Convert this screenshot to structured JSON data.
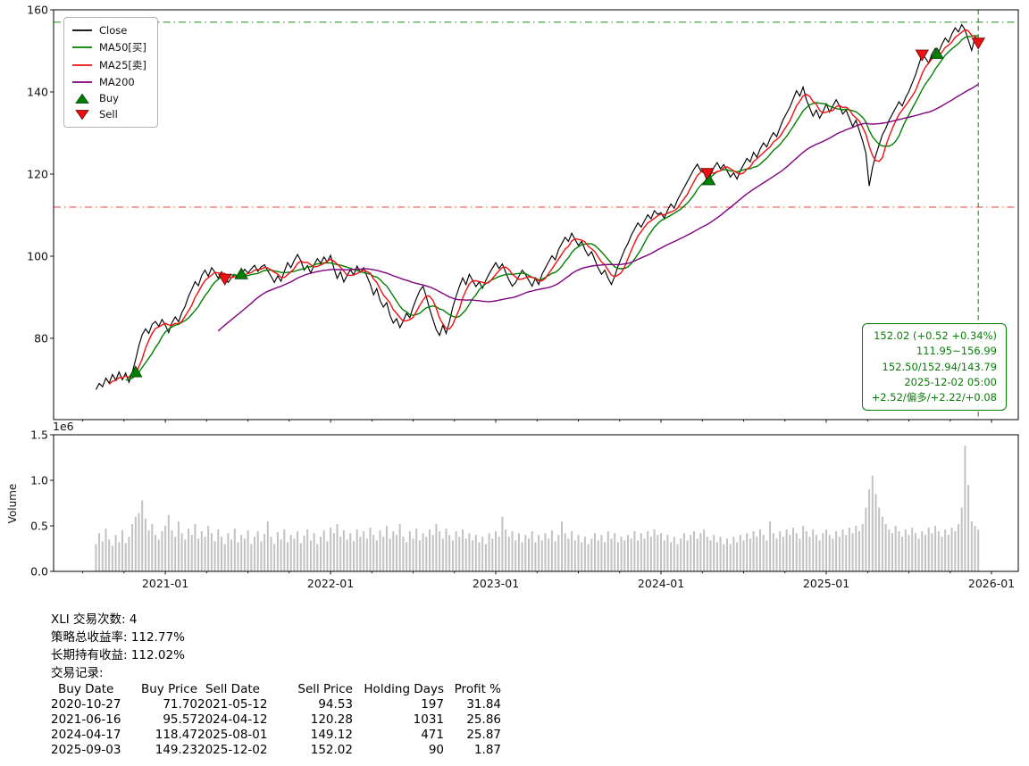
{
  "legend": {
    "items": [
      {
        "label": "Close",
        "type": "line",
        "color": "#000000"
      },
      {
        "label": "MA50[买]",
        "type": "line",
        "color": "#008000"
      },
      {
        "label": "MA25[卖]",
        "type": "line",
        "color": "#ee1111"
      },
      {
        "label": "MA200",
        "type": "line",
        "color": "#800080"
      },
      {
        "label": "Buy",
        "type": "triangle-up",
        "color": "#008000"
      },
      {
        "label": "Sell",
        "type": "triangle-down",
        "color": "#ee1111"
      }
    ]
  },
  "annotation": {
    "color": "#008000",
    "lines": [
      "152.02 (+0.52 +0.34%)",
      "111.95~156.99",
      "152.50/152.94/143.79",
      "2025-12-02 05:00",
      "+2.52/偏多/+2.22/+0.08"
    ]
  },
  "stats": {
    "trade_count_line": "XLI 交易次数: 4",
    "strategy_return_line": "策略总收益率: 112.77%",
    "hold_return_line": "长期持有收益: 112.02%",
    "records_label": "交易记录:",
    "trades": {
      "header": [
        "Buy Date",
        "Buy Price",
        "Sell Date",
        "Sell Price",
        "Holding Days",
        "Profit %"
      ],
      "rows": [
        [
          "2020-10-27",
          "71.70",
          "2021-05-12",
          "94.53",
          "197",
          "31.84"
        ],
        [
          "2021-06-16",
          "95.57",
          "2024-04-12",
          "120.28",
          "1031",
          "25.86"
        ],
        [
          "2024-04-17",
          "118.47",
          "2025-08-01",
          "149.12",
          "471",
          "25.87"
        ],
        [
          "2025-09-03",
          "149.23",
          "2025-12-02",
          "152.02",
          "90",
          "1.87"
        ]
      ]
    }
  },
  "chart_data": [
    {
      "type": "line",
      "name": "price-panel",
      "x_start": 2020.58,
      "x_step": 0.02,
      "xlim": [
        2020.324,
        2026.162
      ],
      "ylim": [
        60.2,
        160
      ],
      "yticks": [
        80,
        100,
        120,
        140,
        160
      ],
      "xticks": [
        {
          "v": 2021.0,
          "label": "2021-01"
        },
        {
          "v": 2022.0,
          "label": "2022-01"
        },
        {
          "v": 2023.0,
          "label": "2023-01"
        },
        {
          "v": 2024.0,
          "label": "2024-01"
        },
        {
          "v": 2025.0,
          "label": "2025-01"
        },
        {
          "v": 2026.0,
          "label": "2026-01"
        }
      ],
      "series": [
        {
          "name": "Close",
          "color": "#000000",
          "values": [
            67.5,
            69.0,
            68.2,
            70.3,
            69.1,
            71.2,
            69.8,
            71.8,
            69.9,
            71.5,
            69.3,
            71.7,
            74.8,
            78.2,
            80.9,
            82.3,
            81.2,
            83.4,
            84.1,
            82.9,
            84.6,
            83.2,
            81.4,
            83.8,
            85.2,
            84.0,
            86.3,
            87.8,
            90.2,
            91.9,
            93.8,
            92.8,
            95.3,
            96.6,
            95.1,
            97.2,
            96.1,
            94.6,
            96.2,
            94.9,
            93.6,
            94.7,
            95.6,
            94.8,
            95.6,
            96.8,
            95.9,
            96.9,
            97.8,
            96.3,
            97.4,
            97.9,
            96.4,
            95.1,
            93.6,
            95.2,
            93.9,
            96.3,
            98.4,
            97.2,
            99.0,
            100.4,
            98.9,
            96.6,
            97.7,
            95.9,
            97.9,
            99.4,
            98.3,
            99.8,
            98.6,
            100.2,
            97.1,
            94.6,
            96.2,
            93.7,
            95.3,
            96.7,
            95.4,
            97.6,
            96.1,
            97.2,
            95.1,
            93.2,
            90.6,
            92.1,
            89.2,
            87.6,
            88.7,
            85.6,
            83.7,
            84.8,
            82.6,
            84.2,
            86.1,
            85.0,
            87.6,
            89.7,
            91.6,
            92.7,
            90.1,
            87.1,
            84.6,
            82.1,
            80.7,
            83.2,
            81.2,
            84.1,
            87.6,
            90.2,
            92.6,
            94.7,
            93.1,
            95.6,
            94.1,
            92.6,
            93.7,
            92.2,
            94.1,
            95.7,
            97.1,
            98.4,
            97.0,
            98.1,
            96.1,
            94.2,
            92.7,
            93.6,
            95.1,
            96.6,
            95.6,
            94.1,
            92.7,
            94.6,
            93.1,
            95.6,
            97.1,
            98.6,
            100.1,
            99.1,
            101.6,
            103.1,
            104.6,
            103.6,
            105.6,
            104.1,
            102.6,
            103.6,
            101.6,
            100.1,
            101.1,
            99.1,
            97.1,
            95.6,
            96.6,
            94.6,
            93.1,
            95.1,
            97.6,
            99.6,
            101.6,
            103.1,
            105.1,
            106.6,
            108.1,
            107.1,
            108.6,
            110.1,
            109.1,
            111.1,
            110.2,
            110.6,
            109.2,
            111.2,
            112.7,
            111.7,
            113.7,
            115.2,
            116.7,
            118.2,
            119.7,
            121.2,
            122.4,
            120.8,
            120.3,
            118.5,
            119.8,
            121.6,
            122.8,
            121.3,
            122.3,
            120.8,
            119.3,
            120.3,
            118.8,
            120.8,
            122.3,
            123.8,
            123.0,
            125.3,
            124.1,
            126.1,
            127.6,
            126.6,
            128.6,
            130.1,
            129.1,
            131.3,
            133.3,
            134.8,
            136.3,
            138.3,
            140.3,
            139.0,
            141.2,
            138.1,
            136.1,
            134.1,
            135.6,
            133.6,
            135.1,
            137.1,
            135.1,
            136.6,
            138.1,
            136.6,
            134.6,
            135.6,
            133.6,
            131.6,
            133.1,
            130.6,
            128.1,
            125.1,
            117.1,
            121.6,
            124.6,
            127.1,
            129.6,
            131.1,
            133.1,
            134.6,
            136.1,
            137.6,
            136.6,
            138.6,
            140.1,
            142.1,
            144.1,
            146.6,
            149.1,
            148.3,
            147.0,
            149.3,
            150.6,
            149.6,
            151.6,
            153.1,
            152.1,
            154.1,
            155.6,
            154.6,
            156.4,
            155.1,
            152.6,
            150.1,
            153.2,
            152.0
          ]
        }
      ],
      "ma_series": [
        {
          "name": "MA50[买]",
          "window": 10,
          "color": "#008000"
        },
        {
          "name": "MA25[卖]",
          "window": 5,
          "color": "#ee1111"
        },
        {
          "name": "MA200",
          "window": 38,
          "color": "#800080"
        }
      ],
      "markers": {
        "buy": {
          "color": "#008000",
          "points": [
            {
              "x": 2020.82,
              "y": 71.7
            },
            {
              "x": 2021.46,
              "y": 95.57
            },
            {
              "x": 2024.29,
              "y": 118.47
            },
            {
              "x": 2025.67,
              "y": 149.23
            }
          ]
        },
        "sell": {
          "color": "#ee1111",
          "points": [
            {
              "x": 2021.36,
              "y": 94.53
            },
            {
              "x": 2024.28,
              "y": 120.28
            },
            {
              "x": 2025.58,
              "y": 149.12
            },
            {
              "x": 2025.92,
              "y": 152.02
            }
          ]
        }
      },
      "hlines": [
        {
          "y": 156.99,
          "color": "#008000"
        },
        {
          "y": 111.95,
          "color": "#ee1111"
        }
      ],
      "vlines": [
        {
          "x": 2025.92,
          "color": "#008000"
        }
      ]
    },
    {
      "type": "bar",
      "name": "volume-panel",
      "ylabel": "Volume",
      "offset_label": "1e6",
      "color": "#c2c2c2",
      "ylim": [
        0,
        1.5
      ],
      "yticks": [
        "0.0",
        "0.5",
        "1.0",
        "1.5"
      ],
      "values": [
        0.3,
        0.42,
        0.33,
        0.47,
        0.35,
        0.28,
        0.4,
        0.32,
        0.45,
        0.31,
        0.38,
        0.52,
        0.6,
        0.64,
        0.78,
        0.58,
        0.45,
        0.52,
        0.4,
        0.35,
        0.44,
        0.5,
        0.62,
        0.45,
        0.38,
        0.55,
        0.42,
        0.35,
        0.47,
        0.4,
        0.52,
        0.36,
        0.44,
        0.38,
        0.5,
        0.42,
        0.33,
        0.46,
        0.38,
        0.3,
        0.42,
        0.35,
        0.47,
        0.32,
        0.4,
        0.36,
        0.45,
        0.3,
        0.38,
        0.44,
        0.33,
        0.41,
        0.55,
        0.38,
        0.3,
        0.43,
        0.35,
        0.46,
        0.32,
        0.4,
        0.36,
        0.44,
        0.31,
        0.39,
        0.46,
        0.34,
        0.42,
        0.3,
        0.38,
        0.45,
        0.33,
        0.48,
        0.42,
        0.52,
        0.38,
        0.45,
        0.35,
        0.42,
        0.33,
        0.46,
        0.38,
        0.44,
        0.36,
        0.48,
        0.4,
        0.34,
        0.45,
        0.38,
        0.5,
        0.36,
        0.44,
        0.4,
        0.52,
        0.38,
        0.32,
        0.44,
        0.36,
        0.47,
        0.34,
        0.42,
        0.38,
        0.46,
        0.4,
        0.52,
        0.44,
        0.36,
        0.47,
        0.4,
        0.34,
        0.44,
        0.38,
        0.46,
        0.36,
        0.42,
        0.34,
        0.4,
        0.32,
        0.38,
        0.3,
        0.42,
        0.36,
        0.44,
        0.38,
        0.6,
        0.46,
        0.38,
        0.44,
        0.34,
        0.42,
        0.32,
        0.4,
        0.36,
        0.44,
        0.32,
        0.4,
        0.34,
        0.42,
        0.36,
        0.45,
        0.33,
        0.4,
        0.55,
        0.42,
        0.36,
        0.44,
        0.34,
        0.4,
        0.32,
        0.38,
        0.3,
        0.36,
        0.42,
        0.34,
        0.4,
        0.32,
        0.44,
        0.36,
        0.42,
        0.32,
        0.38,
        0.34,
        0.4,
        0.36,
        0.44,
        0.34,
        0.42,
        0.36,
        0.44,
        0.38,
        0.46,
        0.4,
        0.42,
        0.34,
        0.4,
        0.32,
        0.38,
        0.3,
        0.36,
        0.42,
        0.34,
        0.4,
        0.44,
        0.36,
        0.42,
        0.46,
        0.38,
        0.34,
        0.4,
        0.32,
        0.38,
        0.3,
        0.36,
        0.3,
        0.38,
        0.32,
        0.4,
        0.34,
        0.42,
        0.36,
        0.44,
        0.38,
        0.46,
        0.4,
        0.34,
        0.55,
        0.42,
        0.36,
        0.44,
        0.38,
        0.46,
        0.4,
        0.48,
        0.42,
        0.36,
        0.5,
        0.44,
        0.38,
        0.46,
        0.4,
        0.34,
        0.42,
        0.46,
        0.4,
        0.36,
        0.44,
        0.38,
        0.46,
        0.4,
        0.48,
        0.42,
        0.5,
        0.44,
        0.52,
        0.7,
        0.9,
        1.05,
        0.85,
        0.7,
        0.6,
        0.52,
        0.46,
        0.42,
        0.5,
        0.44,
        0.38,
        0.46,
        0.4,
        0.48,
        0.42,
        0.36,
        0.44,
        0.4,
        0.48,
        0.42,
        0.5,
        0.44,
        0.38,
        0.46,
        0.4,
        0.48,
        0.44,
        0.52,
        0.7,
        1.38,
        0.95,
        0.55,
        0.5,
        0.46
      ]
    }
  ]
}
